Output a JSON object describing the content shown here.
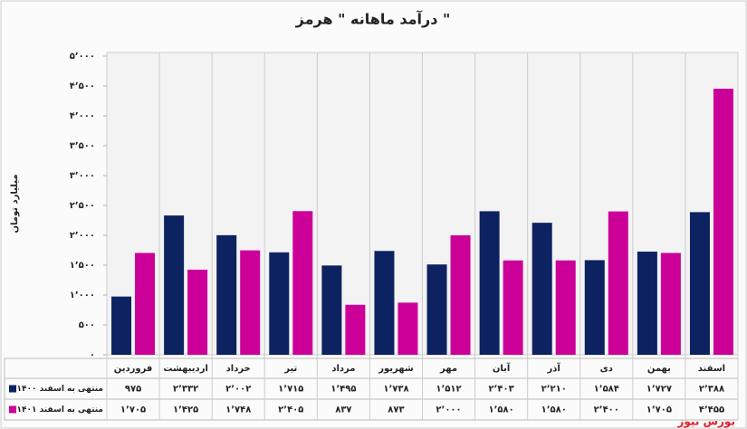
{
  "chart_data": {
    "type": "bar",
    "title": "درآمد ماهانه \" هرمز \"",
    "y_label": "میلیارد تومان",
    "source": "بورس نیوز",
    "categories": [
      "فروردین",
      "اردیبهشت",
      "خرداد",
      "تیر",
      "مرداد",
      "شهریور",
      "مهر",
      "آبان",
      "آذر",
      "دی",
      "بهمن",
      "اسفند"
    ],
    "series": [
      {
        "name": "منتهی به اسفند ۱۴۰۰",
        "color": "#0d2260",
        "values": [
          975,
          2332,
          2002,
          1715,
          1495,
          1738,
          1512,
          2403,
          2210,
          1584,
          1727,
          2388
        ],
        "value_labels": [
          "۹۷۵",
          "۲٬۳۳۲",
          "۲٬۰۰۲",
          "۱٬۷۱۵",
          "۱٬۴۹۵",
          "۱٬۷۳۸",
          "۱٬۵۱۲",
          "۲٬۴۰۳",
          "۲٬۲۱۰",
          "۱٬۵۸۴",
          "۱٬۷۲۷",
          "۲٬۳۸۸"
        ]
      },
      {
        "name": "منتهی به اسفند ۱۴۰۱",
        "color": "#cc0099",
        "values": [
          1705,
          1425,
          1748,
          2405,
          837,
          873,
          2000,
          1580,
          1580,
          2400,
          1705,
          4455
        ],
        "value_labels": [
          "۱٬۷۰۵",
          "۱٬۴۲۵",
          "۱٬۷۴۸",
          "۲٬۴۰۵",
          "۸۳۷",
          "۸۷۳",
          "۲٬۰۰۰",
          "۱٬۵۸۰",
          "۱٬۵۸۰",
          "۲٬۴۰۰",
          "۱٬۷۰۵",
          "۴٬۴۵۵"
        ]
      }
    ],
    "ylim": [
      0,
      5000
    ],
    "yticks": [
      {
        "value": 0,
        "label": "۰"
      },
      {
        "value": 500,
        "label": "۵۰۰"
      },
      {
        "value": 1000,
        "label": "۱٬۰۰۰"
      },
      {
        "value": 1500,
        "label": "۱٬۵۰۰"
      },
      {
        "value": 2000,
        "label": "۲٬۰۰۰"
      },
      {
        "value": 2500,
        "label": "۲٬۵۰۰"
      },
      {
        "value": 3000,
        "label": "۳٬۰۰۰"
      },
      {
        "value": 3500,
        "label": "۳٬۵۰۰"
      },
      {
        "value": 4000,
        "label": "۴٬۰۰۰"
      },
      {
        "value": 4500,
        "label": "۴٬۵۰۰"
      },
      {
        "value": 5000,
        "label": "۵٬۰۰۰"
      }
    ],
    "grid": false
  }
}
